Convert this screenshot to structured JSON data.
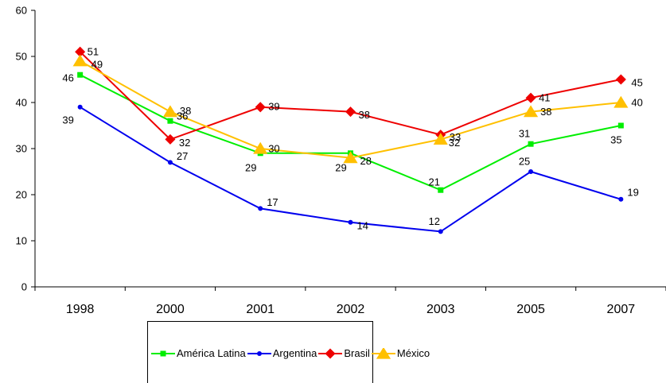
{
  "chart_data": {
    "type": "line",
    "title": "",
    "xlabel": "",
    "ylabel": "",
    "categories": [
      "1998",
      "2000",
      "2001",
      "2002",
      "2003",
      "2005",
      "2007"
    ],
    "ylim": [
      0,
      60
    ],
    "yticks": [
      "0",
      "10",
      "20",
      "30",
      "40",
      "50",
      "60"
    ],
    "grid": false,
    "legend_position": "bottom",
    "series": [
      {
        "name": "América Latina",
        "color": "#00ee00",
        "marker": "square",
        "values": [
          46,
          36,
          29,
          29,
          21,
          31,
          35
        ],
        "labels": [
          "46",
          "36",
          "29",
          "29",
          "21",
          "31",
          "35"
        ]
      },
      {
        "name": "Argentina",
        "color": "#0000ee",
        "marker": "circle",
        "values": [
          39,
          27,
          17,
          14,
          12,
          25,
          19
        ],
        "labels": [
          "39",
          "27",
          "17",
          "14",
          "12",
          "25",
          "19"
        ]
      },
      {
        "name": "Brasil",
        "color": "#ee0000",
        "marker": "diamond",
        "values": [
          51,
          32,
          39,
          38,
          33,
          41,
          45
        ],
        "labels": [
          "51",
          "32",
          "39",
          "38",
          "33",
          "41",
          "45"
        ]
      },
      {
        "name": "México",
        "color": "#ffc000",
        "marker": "triangle",
        "values": [
          49,
          38,
          30,
          28,
          32,
          38,
          40
        ],
        "labels": [
          "49",
          "38",
          "30",
          "28",
          "32",
          "38",
          "40"
        ]
      }
    ]
  }
}
